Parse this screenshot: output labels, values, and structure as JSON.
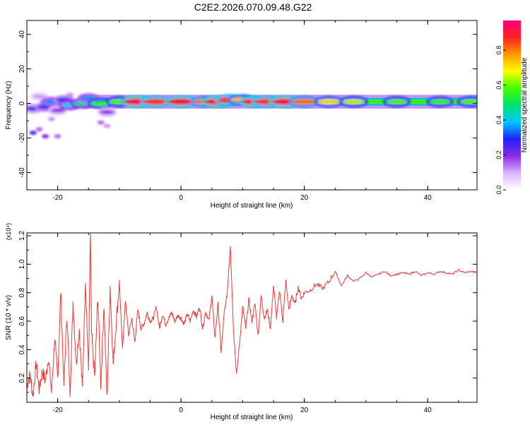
{
  "title": "C2E2.2026.070.09.48.G22",
  "chart_data": [
    {
      "type": "heatmap",
      "name": "spectrogram",
      "xlabel": "Height of straight line (km)",
      "ylabel": "Frequency (Hz)",
      "xlim": [
        -25,
        48
      ],
      "ylim": [
        -50,
        48
      ],
      "xticks": [
        -20,
        0,
        20,
        40
      ],
      "yticks": [
        -40,
        -20,
        0,
        20,
        40
      ],
      "colorbar": {
        "label": "Normalized spectral amplitude",
        "range": [
          0,
          0.97
        ],
        "ticks": [
          0.0,
          0.2,
          0.4,
          0.6,
          0.8
        ],
        "tick_labels": [
          "0.0",
          "0.2",
          "0.4",
          "0.6",
          "0.8"
        ],
        "colors": [
          "#ffffff",
          "#d9b3ff",
          "#8a2be2",
          "#2020ff",
          "#00c8ff",
          "#00e070",
          "#40ff00",
          "#ffff00",
          "#ff9900",
          "#ff2020",
          "#ff0080"
        ]
      },
      "band": {
        "center_hz": 1,
        "half_width_hz": 4
      },
      "hotspots": [
        {
          "x": -24,
          "y": -3,
          "amp": 0.25
        },
        {
          "x": -23,
          "y": 4,
          "amp": 0.12
        },
        {
          "x": -22,
          "y": -2,
          "amp": 0.3
        },
        {
          "x": -21,
          "y": 1,
          "amp": 0.35
        },
        {
          "x": -20,
          "y": -4,
          "amp": 0.2
        },
        {
          "x": -19,
          "y": 2,
          "amp": 0.3
        },
        {
          "x": -18,
          "y": -1,
          "amp": 0.4
        },
        {
          "x": -16,
          "y": 0,
          "amp": 0.45
        },
        {
          "x": -15,
          "y": 3,
          "amp": 0.35
        },
        {
          "x": -13,
          "y": 0,
          "amp": 0.55
        },
        {
          "x": -12,
          "y": -5,
          "amp": 0.2
        },
        {
          "x": -10,
          "y": 1,
          "amp": 0.6
        },
        {
          "x": -7,
          "y": 1,
          "amp": 0.95
        },
        {
          "x": -4,
          "y": 1,
          "amp": 0.85
        },
        {
          "x": 0,
          "y": 1,
          "amp": 0.9
        },
        {
          "x": 4,
          "y": 1,
          "amp": 0.8
        },
        {
          "x": 6,
          "y": 1,
          "amp": 0.95
        },
        {
          "x": 8,
          "y": 2,
          "amp": 0.85
        },
        {
          "x": 10,
          "y": 2,
          "amp": 0.75
        },
        {
          "x": 12,
          "y": 1,
          "amp": 0.9
        },
        {
          "x": 14,
          "y": 1,
          "amp": 0.85
        },
        {
          "x": 17,
          "y": 1,
          "amp": 0.95
        },
        {
          "x": 20,
          "y": 1,
          "amp": 0.8
        },
        {
          "x": 24,
          "y": 1,
          "amp": 0.7
        },
        {
          "x": 28,
          "y": 1,
          "amp": 0.65
        },
        {
          "x": 35,
          "y": 1,
          "amp": 0.6
        },
        {
          "x": 42,
          "y": 1,
          "amp": 0.58
        },
        {
          "x": 47,
          "y": 1,
          "amp": 0.6
        }
      ],
      "outliers": [
        {
          "x": -24,
          "y": -17,
          "amp": 0.25
        },
        {
          "x": -23,
          "y": -15,
          "amp": 0.15
        },
        {
          "x": -22,
          "y": -19,
          "amp": 0.2
        },
        {
          "x": -20,
          "y": -19,
          "amp": 0.15
        },
        {
          "x": -21,
          "y": -9,
          "amp": 0.12
        },
        {
          "x": -13,
          "y": -11,
          "amp": 0.15
        },
        {
          "x": -12,
          "y": -13,
          "amp": 0.12
        },
        {
          "x": -18,
          "y": 5,
          "amp": 0.12
        }
      ]
    },
    {
      "type": "line",
      "name": "snr",
      "xlabel": "Height of straight line (km)",
      "ylabel": "SNR (10 * v/v)",
      "scale_label": "(x10⁴)",
      "xlim": [
        -25,
        48
      ],
      "ylim": [
        0.03,
        1.22
      ],
      "xticks": [
        -20,
        0,
        20,
        40
      ],
      "yticks": [
        0.2,
        0.4,
        0.6,
        0.8,
        1.0,
        1.2
      ],
      "ytick_labels": [
        "0.2",
        "0.4",
        "0.6",
        "0.8",
        "1.0",
        "1.2"
      ],
      "color": "#e83a3a",
      "x": [
        -25,
        -24.5,
        -24,
        -23.5,
        -23,
        -22.5,
        -22,
        -21.5,
        -21,
        -20.5,
        -20,
        -19.5,
        -19,
        -18.5,
        -18,
        -17.5,
        -17,
        -16.5,
        -16,
        -15.5,
        -15,
        -14.7,
        -14.5,
        -14,
        -13.5,
        -13,
        -12.5,
        -12,
        -11.5,
        -11,
        -10.5,
        -10,
        -9.5,
        -9,
        -8.5,
        -8,
        -7.5,
        -7,
        -6.5,
        -6,
        -5.5,
        -5,
        -4.5,
        -4,
        -3.5,
        -3,
        -2.5,
        -2,
        -1.5,
        -1,
        -0.5,
        0,
        0.5,
        1,
        1.5,
        2,
        2.5,
        3,
        3.5,
        4,
        4.5,
        5,
        5.5,
        6,
        6.5,
        7,
        7.5,
        8,
        8.5,
        9,
        9.5,
        10,
        10.5,
        11,
        11.5,
        12,
        12.5,
        13,
        13.5,
        14,
        14.5,
        15,
        15.5,
        16,
        16.5,
        17,
        17.5,
        18,
        18.5,
        19,
        19.5,
        20,
        21,
        22,
        23,
        24,
        25,
        26,
        27,
        28,
        29,
        30,
        31,
        32,
        33,
        34,
        35,
        36,
        37,
        38,
        39,
        40,
        41,
        42,
        43,
        44,
        45,
        46,
        47,
        48
      ],
      "y": [
        0.15,
        0.22,
        0.08,
        0.3,
        0.12,
        0.25,
        0.18,
        0.35,
        0.1,
        0.48,
        0.2,
        0.82,
        0.15,
        0.65,
        0.1,
        0.74,
        0.3,
        0.55,
        0.12,
        0.9,
        0.25,
        1.22,
        0.5,
        0.2,
        0.78,
        0.15,
        0.72,
        0.05,
        0.85,
        0.3,
        0.6,
        0.88,
        0.4,
        0.75,
        0.5,
        0.62,
        0.45,
        0.68,
        0.55,
        0.58,
        0.66,
        0.6,
        0.62,
        0.7,
        0.55,
        0.65,
        0.58,
        0.62,
        0.66,
        0.6,
        0.64,
        0.62,
        0.58,
        0.65,
        0.6,
        0.68,
        0.63,
        0.7,
        0.55,
        0.67,
        0.6,
        0.78,
        0.48,
        0.72,
        0.38,
        0.65,
        0.8,
        1.14,
        0.55,
        0.22,
        0.45,
        0.7,
        0.55,
        0.75,
        0.6,
        0.72,
        0.5,
        0.78,
        0.62,
        0.68,
        0.55,
        0.85,
        0.62,
        0.82,
        0.6,
        0.88,
        0.68,
        0.78,
        0.72,
        0.84,
        0.76,
        0.8,
        0.82,
        0.86,
        0.83,
        0.88,
        0.95,
        0.85,
        0.92,
        0.88,
        0.9,
        0.94,
        0.91,
        0.93,
        0.95,
        0.92,
        0.93,
        0.94,
        0.93,
        0.95,
        0.92,
        0.94,
        0.93,
        0.95,
        0.94,
        0.93,
        0.96,
        0.94,
        0.95,
        0.94
      ]
    }
  ]
}
